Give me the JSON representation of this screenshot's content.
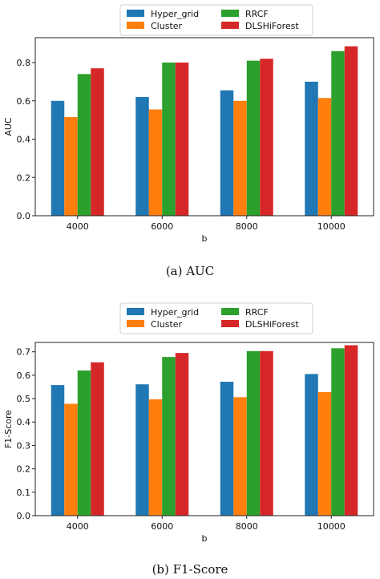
{
  "colors": {
    "Hyper_grid": "#1f77b4",
    "Cluster": "#ff7f0e",
    "RRCF": "#2ca02c",
    "DLSHiForest": "#d62728"
  },
  "chart_data": [
    {
      "type": "bar",
      "caption": "(a)  AUC",
      "categories": [
        "4000",
        "6000",
        "8000",
        "10000"
      ],
      "xlabel": "b",
      "ylabel": "AUC",
      "ylim": [
        0,
        0.93
      ],
      "yticks": [
        "0.0",
        "0.2",
        "0.4",
        "0.6",
        "0.8"
      ],
      "grid": false,
      "legend_position": "top",
      "series": [
        {
          "name": "Hyper_grid",
          "values": [
            0.6,
            0.62,
            0.655,
            0.7
          ]
        },
        {
          "name": "Cluster",
          "values": [
            0.515,
            0.555,
            0.6,
            0.615
          ]
        },
        {
          "name": "RRCF",
          "values": [
            0.74,
            0.8,
            0.81,
            0.86
          ]
        },
        {
          "name": "DLSHiForest",
          "values": [
            0.77,
            0.8,
            0.82,
            0.885
          ]
        }
      ]
    },
    {
      "type": "bar",
      "caption": "(b)  F1-Score",
      "categories": [
        "4000",
        "6000",
        "8000",
        "10000"
      ],
      "xlabel": "b",
      "ylabel": "F1-Score",
      "ylim": [
        0,
        0.74
      ],
      "yticks": [
        "0.0",
        "0.1",
        "0.2",
        "0.3",
        "0.4",
        "0.5",
        "0.6",
        "0.7"
      ],
      "grid": false,
      "legend_position": "top",
      "series": [
        {
          "name": "Hyper_grid",
          "values": [
            0.558,
            0.561,
            0.572,
            0.605
          ]
        },
        {
          "name": "Cluster",
          "values": [
            0.478,
            0.497,
            0.506,
            0.528
          ]
        },
        {
          "name": "RRCF",
          "values": [
            0.62,
            0.678,
            0.703,
            0.715
          ]
        },
        {
          "name": "DLSHiForest",
          "values": [
            0.655,
            0.695,
            0.703,
            0.728
          ]
        }
      ]
    }
  ]
}
